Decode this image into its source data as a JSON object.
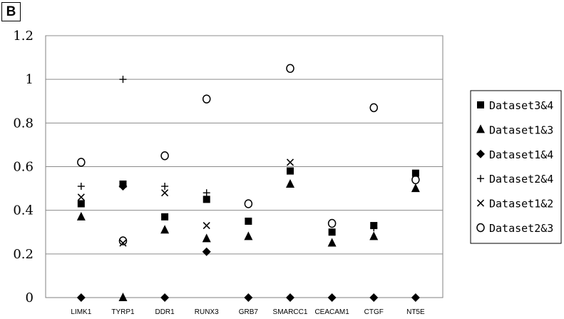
{
  "panel_label": "B",
  "chart_data": {
    "type": "scatter",
    "categories": [
      "LIMK1",
      "TYRP1",
      "DDR1",
      "RUNX3",
      "GRB7",
      "SMARCC1",
      "CEACAM1",
      "CTGF",
      "NT5E"
    ],
    "ylim": [
      0,
      1.2
    ],
    "yticks": [
      "0",
      "0.2",
      "0.4",
      "0.6",
      "0.8",
      "1",
      "1.2"
    ],
    "grid": true,
    "legend_position": "right",
    "series": [
      {
        "name": "Dataset3&4",
        "marker": "square",
        "values": [
          0.43,
          0.52,
          0.37,
          0.45,
          0.35,
          0.58,
          0.3,
          0.33,
          0.57
        ]
      },
      {
        "name": "Dataset1&3",
        "marker": "triangle",
        "values": [
          0.37,
          0.0,
          0.31,
          0.27,
          0.28,
          0.52,
          0.25,
          0.28,
          0.5
        ]
      },
      {
        "name": "Dataset1&4",
        "marker": "diamond",
        "values": [
          0.0,
          0.51,
          0.0,
          0.21,
          0.0,
          0.0,
          0.0,
          0.0,
          0.0
        ]
      },
      {
        "name": "Dataset2&4",
        "marker": "plus",
        "values": [
          0.51,
          1.0,
          0.51,
          0.48,
          null,
          null,
          null,
          0.32,
          null
        ]
      },
      {
        "name": "Dataset1&2",
        "marker": "cross",
        "values": [
          0.46,
          0.25,
          0.48,
          0.33,
          null,
          0.62,
          null,
          0.33,
          null
        ]
      },
      {
        "name": "Dataset2&3",
        "marker": "circle",
        "values": [
          0.62,
          0.26,
          0.65,
          0.91,
          0.43,
          1.05,
          0.34,
          0.87,
          0.54
        ]
      }
    ]
  }
}
